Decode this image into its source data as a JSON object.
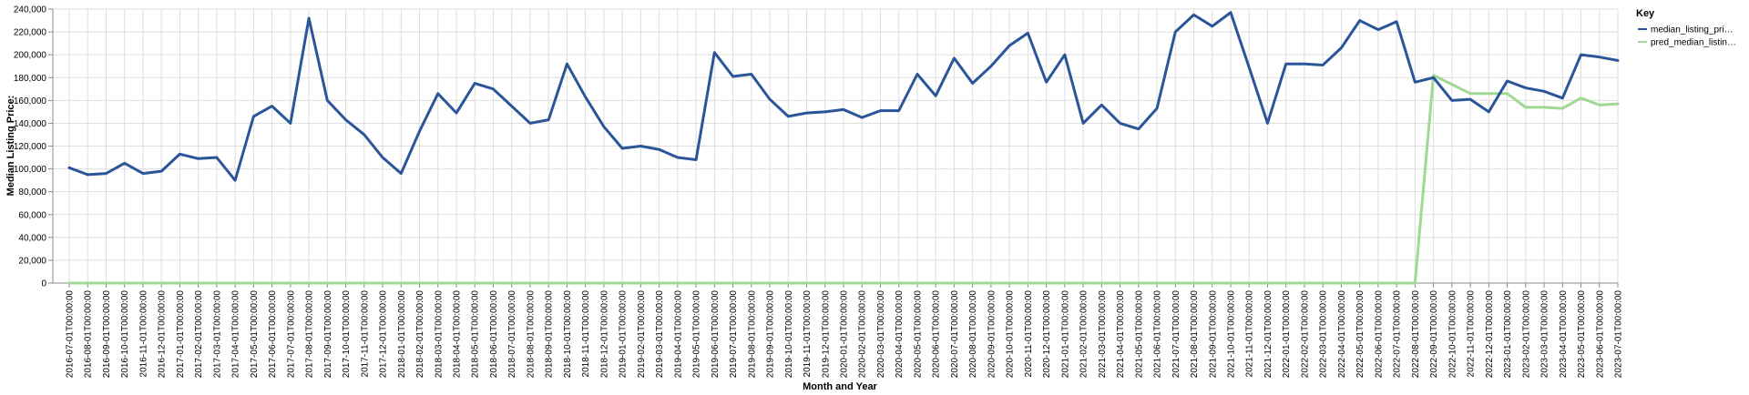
{
  "chart_data": {
    "type": "line",
    "xlabel": "Month and Year",
    "ylabel": "Median Listing Price:",
    "ylim": [
      0,
      240000
    ],
    "yticks": [
      "0",
      "20,000",
      "40,000",
      "60,000",
      "80,000",
      "100,000",
      "120,000",
      "140,000",
      "160,000",
      "180,000",
      "200,000",
      "220,000",
      "240,000"
    ],
    "grid": true,
    "legend": {
      "title": "Key",
      "placement": "top-right"
    },
    "x": [
      "2016-07-01T00:00:00",
      "2016-08-01T00:00:00",
      "2016-09-01T00:00:00",
      "2016-10-01T00:00:00",
      "2016-11-01T00:00:00",
      "2016-12-01T00:00:00",
      "2017-01-01T00:00:00",
      "2017-02-01T00:00:00",
      "2017-03-01T00:00:00",
      "2017-04-01T00:00:00",
      "2017-05-01T00:00:00",
      "2017-06-01T00:00:00",
      "2017-07-01T00:00:00",
      "2017-08-01T00:00:00",
      "2017-09-01T00:00:00",
      "2017-10-01T00:00:00",
      "2017-11-01T00:00:00",
      "2017-12-01T00:00:00",
      "2018-01-01T00:00:00",
      "2018-02-01T00:00:00",
      "2018-03-01T00:00:00",
      "2018-04-01T00:00:00",
      "2018-05-01T00:00:00",
      "2018-06-01T00:00:00",
      "2018-07-01T00:00:00",
      "2018-08-01T00:00:00",
      "2018-09-01T00:00:00",
      "2018-10-01T00:00:00",
      "2018-11-01T00:00:00",
      "2018-12-01T00:00:00",
      "2019-01-01T00:00:00",
      "2019-02-01T00:00:00",
      "2019-03-01T00:00:00",
      "2019-04-01T00:00:00",
      "2019-05-01T00:00:00",
      "2019-06-01T00:00:00",
      "2019-07-01T00:00:00",
      "2019-08-01T00:00:00",
      "2019-09-01T00:00:00",
      "2019-10-01T00:00:00",
      "2019-11-01T00:00:00",
      "2019-12-01T00:00:00",
      "2020-01-01T00:00:00",
      "2020-02-01T00:00:00",
      "2020-03-01T00:00:00",
      "2020-04-01T00:00:00",
      "2020-05-01T00:00:00",
      "2020-06-01T00:00:00",
      "2020-07-01T00:00:00",
      "2020-08-01T00:00:00",
      "2020-09-01T00:00:00",
      "2020-10-01T00:00:00",
      "2020-11-01T00:00:00",
      "2020-12-01T00:00:00",
      "2021-01-01T00:00:00",
      "2021-02-01T00:00:00",
      "2021-03-01T00:00:00",
      "2021-04-01T00:00:00",
      "2021-05-01T00:00:00",
      "2021-06-01T00:00:00",
      "2021-07-01T00:00:00",
      "2021-08-01T00:00:00",
      "2021-09-01T00:00:00",
      "2021-10-01T00:00:00",
      "2021-11-01T00:00:00",
      "2021-12-01T00:00:00",
      "2022-01-01T00:00:00",
      "2022-02-01T00:00:00",
      "2022-03-01T00:00:00",
      "2022-04-01T00:00:00",
      "2022-05-01T00:00:00",
      "2022-06-01T00:00:00",
      "2022-07-01T00:00:00",
      "2022-08-01T00:00:00",
      "2022-09-01T00:00:00",
      "2022-10-01T00:00:00",
      "2022-11-01T00:00:00",
      "2022-12-01T00:00:00",
      "2023-01-01T00:00:00",
      "2023-02-01T00:00:00",
      "2023-03-01T00:00:00",
      "2023-04-01T00:00:00",
      "2023-05-01T00:00:00",
      "2023-06-01T00:00:00",
      "2023-07-01T00:00:00"
    ],
    "series": [
      {
        "name": "median_listing_pri…",
        "color": "#2a5599",
        "values": [
          101000,
          95000,
          96000,
          105000,
          96000,
          98000,
          113000,
          109000,
          110000,
          90000,
          146000,
          155000,
          140000,
          232000,
          160000,
          143000,
          130000,
          110000,
          96000,
          133000,
          166000,
          149000,
          175000,
          170000,
          155000,
          140000,
          143000,
          192000,
          163000,
          137000,
          118000,
          120000,
          117000,
          110000,
          108000,
          202000,
          181000,
          183000,
          161000,
          146000,
          149000,
          150000,
          152000,
          145000,
          151000,
          151000,
          183000,
          164000,
          197000,
          175000,
          190000,
          208000,
          219000,
          176000,
          200000,
          140000,
          156000,
          140000,
          135000,
          153000,
          220000,
          235000,
          225000,
          237000,
          189000,
          140000,
          192000,
          192000,
          191000,
          206000,
          230000,
          222000,
          229000,
          176000,
          180000,
          160000,
          161000,
          150000,
          177000,
          171000,
          168000,
          162000,
          200000,
          198000,
          195000
        ]
      },
      {
        "name": "pred_median_listin…",
        "color": "#a0d993",
        "values": [
          0,
          0,
          0,
          0,
          0,
          0,
          0,
          0,
          0,
          0,
          0,
          0,
          0,
          0,
          0,
          0,
          0,
          0,
          0,
          0,
          0,
          0,
          0,
          0,
          0,
          0,
          0,
          0,
          0,
          0,
          0,
          0,
          0,
          0,
          0,
          0,
          0,
          0,
          0,
          0,
          0,
          0,
          0,
          0,
          0,
          0,
          0,
          0,
          0,
          0,
          0,
          0,
          0,
          0,
          0,
          0,
          0,
          0,
          0,
          0,
          0,
          0,
          0,
          0,
          0,
          0,
          0,
          0,
          0,
          0,
          0,
          0,
          0,
          0,
          182000,
          174000,
          166000,
          166000,
          166000,
          154000,
          154000,
          153000,
          162000,
          156000,
          157000
        ]
      }
    ]
  }
}
